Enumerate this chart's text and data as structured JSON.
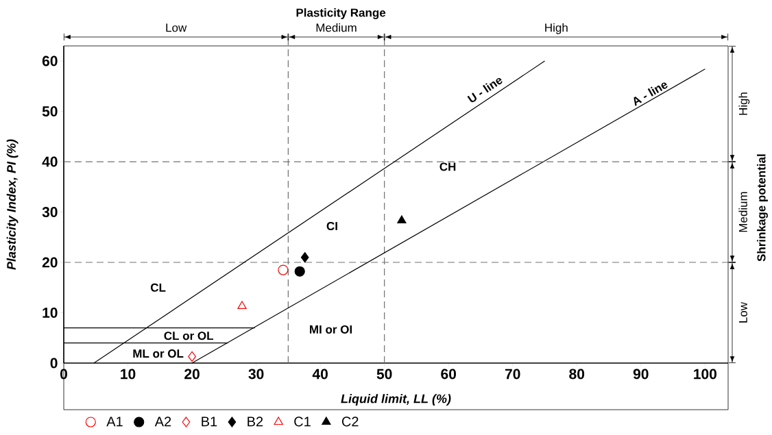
{
  "chart_data": {
    "type": "scatter",
    "title": "Plasticity Range",
    "xlabel": "Liquid limit, LL (%)",
    "ylabel": "Plasticity Index, PI (%)",
    "y2label": "Shrinkage potential",
    "xlim": [
      0,
      103.6
    ],
    "ylim": [
      0,
      63
    ],
    "xticks": [
      0,
      10,
      20,
      30,
      40,
      50,
      60,
      70,
      80,
      90,
      100
    ],
    "yticks": [
      0,
      10,
      20,
      30,
      40,
      50,
      60
    ],
    "legend": "bottom",
    "series": [
      {
        "type": "line",
        "color": "#000000",
        "marker": "none",
        "line_style": "solid",
        "x": [
          4.7,
          75
        ],
        "values": [
          0,
          60
        ]
      },
      {
        "type": "line",
        "color": "#000000",
        "marker": "none",
        "line_style": "solid",
        "x": [
          20,
          100
        ],
        "values": [
          0,
          58.4
        ]
      },
      {
        "type": "line",
        "color": "#000000",
        "marker": "none",
        "line_style": "solid",
        "x": [
          0,
          29.8
        ],
        "values": [
          7,
          7
        ]
      },
      {
        "type": "line",
        "color": "#000000",
        "marker": "none",
        "line_style": "solid",
        "x": [
          0,
          25.6
        ],
        "values": [
          4,
          4
        ]
      },
      {
        "name": "A1",
        "color": "#ff0000",
        "marker": "circle",
        "x": [
          34.2
        ],
        "values": [
          18.5
        ]
      },
      {
        "name": "A2",
        "color": "#000000",
        "marker": "circle",
        "x": [
          36.8
        ],
        "values": [
          18.2
        ]
      },
      {
        "name": "B1",
        "color": "#ff0000",
        "marker": "diamond",
        "x": [
          20
        ],
        "values": [
          1.3
        ]
      },
      {
        "name": "B2",
        "color": "#000000",
        "marker": "diamond",
        "x": [
          37.6
        ],
        "values": [
          21
        ]
      },
      {
        "name": "C1",
        "color": "#ff0000",
        "marker": "triangle",
        "x": [
          27.8
        ],
        "values": [
          11.3
        ]
      },
      {
        "name": "C2",
        "color": "#000000",
        "marker": "triangle",
        "x": [
          52.7
        ],
        "values": [
          28.3
        ]
      }
    ],
    "ref_lines": [
      {
        "axis": "x",
        "value": 35,
        "color": "#707070",
        "line_style": "dashed"
      },
      {
        "axis": "x",
        "value": 50,
        "color": "#707070",
        "line_style": "dashed"
      },
      {
        "axis": "y",
        "value": 20,
        "color": "#707070",
        "line_style": "dashed"
      },
      {
        "axis": "y",
        "value": 40,
        "color": "#707070",
        "line_style": "dashed"
      }
    ],
    "annotations": [
      "CL",
      "CL or OL",
      "ML or OL",
      "CI",
      "CH",
      "MI or OI",
      "U - line",
      "A - line",
      "Low",
      "Medium",
      "High",
      "Low",
      "Medium",
      "High"
    ]
  }
}
